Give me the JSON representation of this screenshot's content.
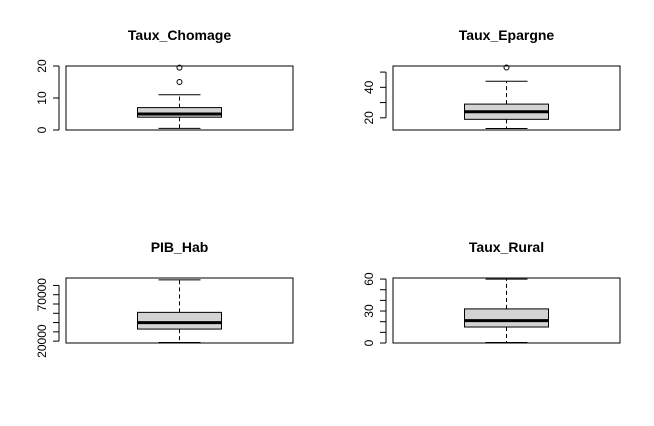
{
  "chart_data": [
    {
      "type": "boxplot",
      "title": "Taux_Chomage",
      "ylim": [
        0,
        20
      ],
      "yticks": [
        0,
        10,
        20
      ],
      "ytick_labels": [
        "0",
        "10",
        "20"
      ],
      "minor_ticks": [],
      "box": {
        "whisker_low": 0.5,
        "q1": 4.0,
        "median": 5.0,
        "q3": 7.0,
        "whisker_high": 11.0
      },
      "outliers": [
        15.0,
        19.5
      ],
      "box_fill": "#d3d3d3"
    },
    {
      "type": "boxplot",
      "title": "Taux_Epargne",
      "ylim": [
        12,
        54
      ],
      "yticks": [
        20,
        40
      ],
      "ytick_labels": [
        "20",
        "40"
      ],
      "minor_ticks": [
        30,
        50
      ],
      "box": {
        "whisker_low": 13.0,
        "q1": 19.0,
        "median": 24.0,
        "q3": 29.0,
        "whisker_high": 44.0
      },
      "outliers": [
        53.0
      ],
      "box_fill": "#d3d3d3"
    },
    {
      "type": "boxplot",
      "title": "PIB_Hab",
      "ylim": [
        18000,
        88000
      ],
      "yticks": [
        20000,
        70000
      ],
      "ytick_labels": [
        "20000",
        "70000"
      ],
      "minor_ticks": [
        30000,
        40000,
        50000,
        60000,
        80000
      ],
      "box": {
        "whisker_low": 18500,
        "q1": 33000,
        "median": 40000,
        "q3": 51000,
        "whisker_high": 86000
      },
      "outliers": [],
      "box_fill": "#d3d3d3"
    },
    {
      "type": "boxplot",
      "title": "Taux_Rural",
      "ylim": [
        0,
        61
      ],
      "yticks": [
        0,
        30,
        60
      ],
      "ytick_labels": [
        "0",
        "30",
        "60"
      ],
      "minor_ticks": [
        10,
        20,
        40,
        50
      ],
      "box": {
        "whisker_low": 0.5,
        "q1": 15.0,
        "median": 21.0,
        "q3": 32.0,
        "whisker_high": 60.0
      },
      "outliers": [],
      "box_fill": "#d3d3d3"
    }
  ]
}
